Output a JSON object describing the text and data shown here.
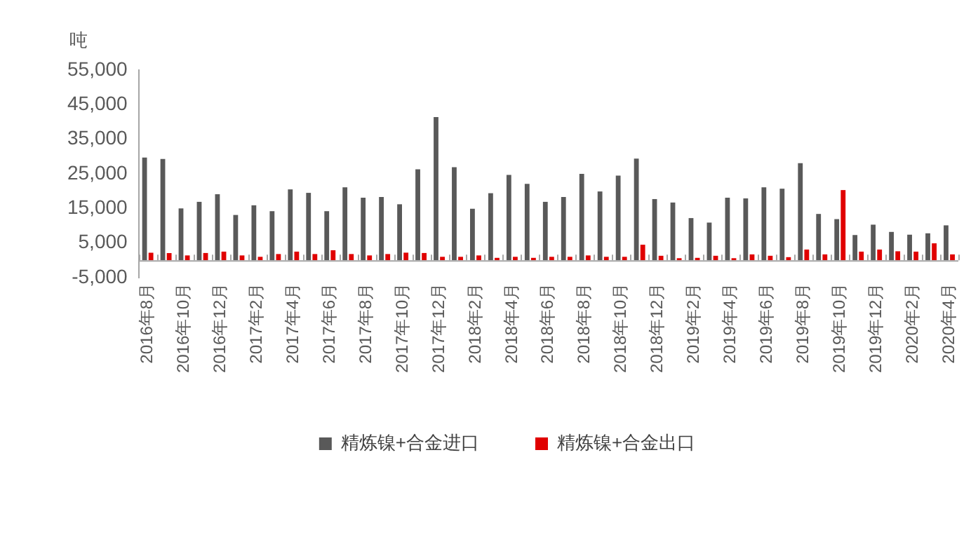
{
  "chart_data": {
    "type": "bar",
    "ylabel": "吨",
    "categories": [
      "2016年8月",
      null,
      "2016年10月",
      null,
      "2016年12月",
      null,
      "2017年2月",
      null,
      "2017年4月",
      null,
      "2017年6月",
      null,
      "2017年8月",
      null,
      "2017年10月",
      null,
      "2017年12月",
      null,
      "2018年2月",
      null,
      "2018年4月",
      null,
      "2018年6月",
      null,
      "2018年8月",
      null,
      "2018年10月",
      null,
      "2018年12月",
      null,
      "2019年2月",
      null,
      "2019年4月",
      null,
      "2019年6月",
      null,
      "2019年8月",
      null,
      "2019年10月",
      null,
      "2019年12月",
      null,
      "2020年2月",
      null,
      "2020年4月"
    ],
    "series": [
      {
        "name": "精炼镍+合金进口",
        "color": "#595959",
        "values": [
          29700,
          29300,
          15000,
          16900,
          19100,
          13100,
          15900,
          14200,
          20500,
          19500,
          14200,
          21100,
          18100,
          18300,
          16200,
          26300,
          41400,
          26900,
          14900,
          19400,
          24700,
          22100,
          16900,
          18300,
          25000,
          19900,
          24500,
          29400,
          17700,
          16700,
          12200,
          10900,
          18100,
          17900,
          21100,
          20700,
          28100,
          13400,
          11900,
          7300,
          10300,
          8200,
          7400,
          7800,
          10100
        ]
      },
      {
        "name": "精炼镍+合金出口",
        "color": "#e00000",
        "values": [
          2200,
          2100,
          1400,
          2100,
          2500,
          1400,
          1000,
          1800,
          2500,
          1800,
          2900,
          1800,
          1400,
          1800,
          2200,
          2100,
          1000,
          1000,
          1400,
          700,
          1000,
          700,
          1000,
          1000,
          1400,
          1000,
          1000,
          4500,
          1300,
          600,
          700,
          1300,
          600,
          1700,
          1300,
          900,
          3100,
          1700,
          20300,
          2500,
          3100,
          2600,
          2500,
          4900,
          1700
        ]
      }
    ],
    "ylim": [
      -5000,
      55000
    ],
    "yticks": [
      {
        "value": -5000,
        "label": "-5,000"
      },
      {
        "value": 5000,
        "label": "5,000"
      },
      {
        "value": 15000,
        "label": "15,000"
      },
      {
        "value": 25000,
        "label": "25,000"
      },
      {
        "value": 35000,
        "label": "35,000"
      },
      {
        "value": 45000,
        "label": "45,000"
      },
      {
        "value": 55000,
        "label": "55,000"
      }
    ],
    "grid": false,
    "legend": "bottom"
  }
}
